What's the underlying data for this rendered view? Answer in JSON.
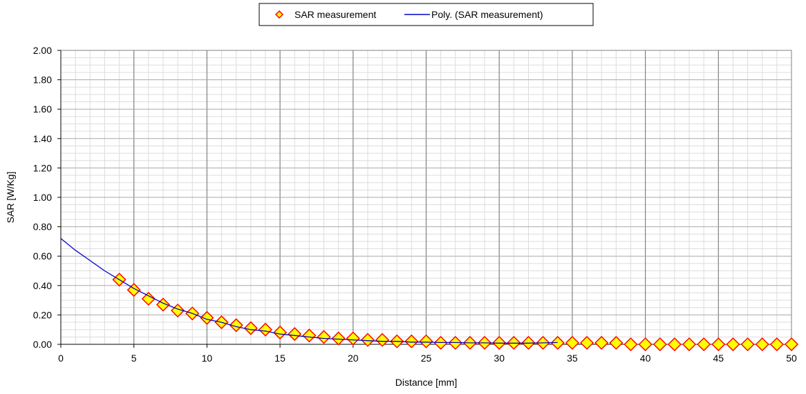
{
  "chart_data": {
    "type": "scatter",
    "title": "",
    "xlabel": "Distance [mm]",
    "ylabel": "SAR [W/Kg]",
    "xlim": [
      0,
      50
    ],
    "ylim": [
      0,
      2.0
    ],
    "x_ticks": [
      0,
      5,
      10,
      15,
      20,
      25,
      30,
      35,
      40,
      45,
      50
    ],
    "x_tick_labels": [
      "0",
      "5",
      "10",
      "15",
      "20",
      "25",
      "30",
      "35",
      "40",
      "45",
      "50"
    ],
    "y_ticks": [
      0,
      0.2,
      0.4,
      0.6,
      0.8,
      1.0,
      1.2,
      1.4,
      1.6,
      1.8,
      2.0
    ],
    "y_tick_labels": [
      "0.00",
      "0.20",
      "0.40",
      "0.60",
      "0.80",
      "1.00",
      "1.20",
      "1.40",
      "1.60",
      "1.80",
      "2.00"
    ],
    "grid": true,
    "legend_position": "top-center",
    "series": [
      {
        "name": "SAR measurement",
        "kind": "marker",
        "marker": "diamond",
        "marker_fill": "#ffff00",
        "marker_stroke": "#ff0000",
        "x": [
          4,
          5,
          6,
          7,
          8,
          9,
          10,
          11,
          12,
          13,
          14,
          15,
          16,
          17,
          18,
          19,
          20,
          21,
          22,
          23,
          24,
          25,
          26,
          27,
          28,
          29,
          30,
          31,
          32,
          33,
          34,
          35,
          36,
          37,
          38,
          39,
          40,
          41,
          42,
          43,
          44,
          45,
          46,
          47,
          48,
          49,
          50
        ],
        "y": [
          0.44,
          0.37,
          0.31,
          0.27,
          0.23,
          0.21,
          0.18,
          0.15,
          0.13,
          0.11,
          0.1,
          0.08,
          0.07,
          0.06,
          0.05,
          0.04,
          0.04,
          0.03,
          0.03,
          0.02,
          0.02,
          0.02,
          0.01,
          0.01,
          0.01,
          0.01,
          0.01,
          0.01,
          0.01,
          0.01,
          0.01,
          0.01,
          0.01,
          0.01,
          0.01,
          0.0,
          0.0,
          0.0,
          0.0,
          0.0,
          0.0,
          0.0,
          0.0,
          0.0,
          0.0,
          0.0,
          0.0
        ]
      },
      {
        "name": "Poly. (SAR measurement)",
        "kind": "line",
        "color": "#0000cc",
        "x": [
          0,
          1,
          2,
          3,
          4,
          5,
          6,
          7,
          8,
          9,
          10,
          11,
          12,
          13,
          14,
          15,
          16,
          17,
          18,
          19,
          20,
          21,
          22,
          23,
          24,
          25,
          26,
          27,
          28,
          29,
          30,
          31,
          32,
          33,
          34
        ],
        "y": [
          0.72,
          0.64,
          0.57,
          0.5,
          0.44,
          0.38,
          0.33,
          0.28,
          0.24,
          0.21,
          0.17,
          0.15,
          0.12,
          0.1,
          0.09,
          0.07,
          0.06,
          0.05,
          0.04,
          0.035,
          0.03,
          0.025,
          0.02,
          0.02,
          0.015,
          0.015,
          0.012,
          0.012,
          0.01,
          0.01,
          0.008,
          0.008,
          0.008,
          0.01,
          0.012
        ]
      }
    ]
  }
}
